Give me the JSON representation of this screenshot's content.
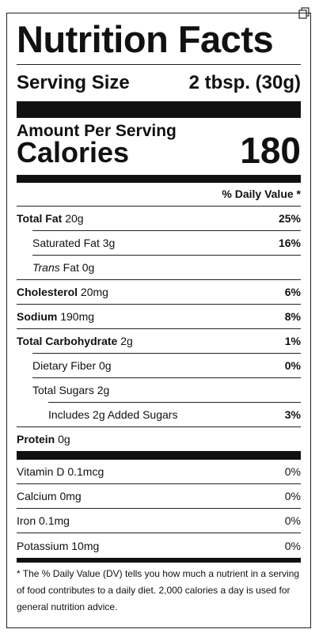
{
  "header": {
    "title": "Nutrition Facts",
    "copy_icon": "copy-icon"
  },
  "serving": {
    "label": "Serving Size",
    "value": "2 tbsp. (30g)"
  },
  "amount_per_serving": "Amount Per Serving",
  "calories": {
    "label": "Calories",
    "value": "180"
  },
  "daily_value_header": "% Daily Value *",
  "nutrients": {
    "total_fat": {
      "label": "Total Fat",
      "amount": "20g",
      "dv": "25%"
    },
    "saturated_fat": {
      "label": "Saturated Fat 3g",
      "dv": "16%"
    },
    "trans_fat": {
      "label_italic": "Trans",
      "label_rest": "Fat 0g"
    },
    "cholesterol": {
      "label": "Cholesterol",
      "amount": "20mg",
      "dv": "6%"
    },
    "sodium": {
      "label": "Sodium",
      "amount": "190mg",
      "dv": "8%"
    },
    "total_carbohydrate": {
      "label": "Total Carbohydrate",
      "amount": "2g",
      "dv": "1%"
    },
    "dietary_fiber": {
      "label": "Dietary Fiber 0g",
      "dv": "0%"
    },
    "total_sugars": {
      "label": "Total Sugars 2g"
    },
    "added_sugars": {
      "label": "Includes 2g Added Sugars",
      "dv": "3%"
    },
    "protein": {
      "label": "Protein",
      "amount": "0g"
    }
  },
  "vitamins": [
    {
      "label": "Vitamin D 0.1mcg",
      "dv": "0%"
    },
    {
      "label": "Calcium 0mg",
      "dv": "0%"
    },
    {
      "label": "Iron 0.1mg",
      "dv": "0%"
    },
    {
      "label": "Potassium 10mg",
      "dv": "0%"
    }
  ],
  "footnote": "* The % Daily Value (DV) tells you how much a nutrient in a serving of food contributes to a daily diet. 2,000 calories a day is used for general nutrition advice."
}
